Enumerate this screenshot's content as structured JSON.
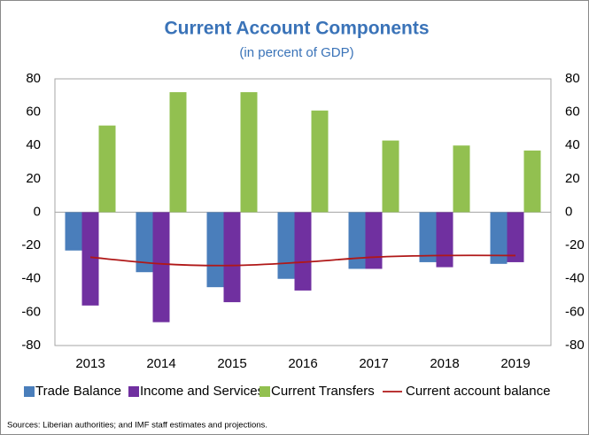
{
  "chart_data": {
    "type": "bar",
    "title": "Current Account Components",
    "subtitle": "(in percent of GDP)",
    "categories": [
      "2013",
      "2014",
      "2015",
      "2016",
      "2017",
      "2018",
      "2019"
    ],
    "series": [
      {
        "name": "Trade Balance",
        "type": "bar",
        "color": "#4a7ebb",
        "values": [
          -23,
          -36,
          -45,
          -40,
          -34,
          -30,
          -31
        ]
      },
      {
        "name": "Income and Services",
        "type": "bar",
        "color": "#7030a0",
        "values": [
          -56,
          -66,
          -54,
          -47,
          -34,
          -33,
          -30
        ]
      },
      {
        "name": "Current Transfers",
        "type": "bar",
        "color": "#92c050",
        "values": [
          52,
          72,
          72,
          61,
          43,
          40,
          37
        ]
      },
      {
        "name": "Current account balance",
        "type": "line",
        "color": "#b01818",
        "values": [
          -27,
          -31,
          -32,
          -30,
          -27,
          -26,
          -26
        ]
      }
    ],
    "ylim": [
      -80,
      80
    ],
    "yticks": [
      -80,
      -60,
      -40,
      -20,
      0,
      20,
      40,
      60,
      80
    ],
    "y2lim": [
      -80,
      80
    ],
    "y2ticks": [
      -80,
      -60,
      -40,
      -20,
      0,
      20,
      40,
      60,
      80
    ],
    "legend": "bottom",
    "source": "Sources: Liberian authorities; and IMF staff estimates and projections."
  }
}
